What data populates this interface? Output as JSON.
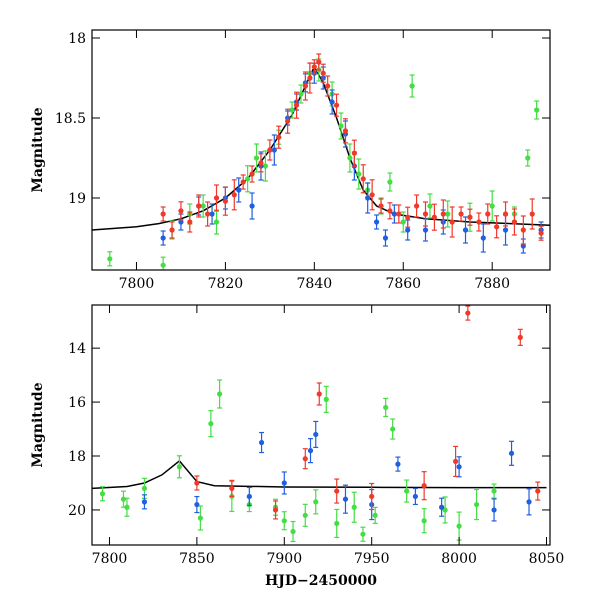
{
  "chart_data": [
    {
      "type": "scatter",
      "panel": "top",
      "xlabel": "",
      "ylabel": "Magnitude",
      "xlim": [
        7790,
        7893
      ],
      "ylim": [
        19.45,
        17.95
      ],
      "y_inverted": true,
      "x_ticks": [
        7800,
        7820,
        7840,
        7860,
        7880
      ],
      "x_tick_labels": [
        "7800",
        "7820",
        "7840",
        "7860",
        "7880"
      ],
      "y_ticks": [
        18,
        18.5,
        19
      ],
      "y_tick_labels": [
        "18",
        "18.5",
        "19"
      ],
      "colors": {
        "green": "#44dd44",
        "blue": "#1f5fe0",
        "red": "#f0392b",
        "model": "#000000"
      },
      "model_curve": [
        [
          7790,
          19.2
        ],
        [
          7800,
          19.18
        ],
        [
          7805,
          19.16
        ],
        [
          7810,
          19.13
        ],
        [
          7815,
          19.08
        ],
        [
          7820,
          19.0
        ],
        [
          7825,
          18.88
        ],
        [
          7830,
          18.7
        ],
        [
          7835,
          18.48
        ],
        [
          7838,
          18.3
        ],
        [
          7840,
          18.18
        ],
        [
          7842,
          18.28
        ],
        [
          7845,
          18.5
        ],
        [
          7848,
          18.75
        ],
        [
          7851,
          18.95
        ],
        [
          7854,
          19.05
        ],
        [
          7858,
          19.1
        ],
        [
          7865,
          19.13
        ],
        [
          7875,
          19.15
        ],
        [
          7893,
          19.17
        ]
      ],
      "series": [
        {
          "color": "green",
          "points": [
            [
              7794,
              19.38
            ],
            [
              7806,
              19.42
            ],
            [
              7808,
              19.2
            ],
            [
              7812,
              19.1
            ],
            [
              7815,
              19.05
            ],
            [
              7818,
              19.15
            ],
            [
              7825,
              18.88
            ],
            [
              7827,
              18.75
            ],
            [
              7829,
              18.8
            ],
            [
              7832,
              18.62
            ],
            [
              7835,
              18.45
            ],
            [
              7837,
              18.35
            ],
            [
              7839,
              18.22
            ],
            [
              7841,
              18.2
            ],
            [
              7844,
              18.35
            ],
            [
              7846,
              18.55
            ],
            [
              7848,
              18.75
            ],
            [
              7850,
              18.85
            ],
            [
              7852,
              18.95
            ],
            [
              7855,
              19.05
            ],
            [
              7857,
              18.9
            ],
            [
              7860,
              19.15
            ],
            [
              7862,
              18.3
            ],
            [
              7866,
              19.05
            ],
            [
              7870,
              19.1
            ],
            [
              7875,
              19.12
            ],
            [
              7880,
              19.05
            ],
            [
              7885,
              19.1
            ],
            [
              7888,
              18.75
            ],
            [
              7890,
              18.45
            ]
          ]
        },
        {
          "color": "blue",
          "points": [
            [
              7806,
              19.25
            ],
            [
              7810,
              19.15
            ],
            [
              7814,
              19.05
            ],
            [
              7817,
              19.1
            ],
            [
              7820,
              19.0
            ],
            [
              7823,
              18.95
            ],
            [
              7826,
              19.05
            ],
            [
              7828,
              18.8
            ],
            [
              7831,
              18.7
            ],
            [
              7834,
              18.5
            ],
            [
              7836,
              18.4
            ],
            [
              7838,
              18.28
            ],
            [
              7840,
              18.22
            ],
            [
              7842,
              18.25
            ],
            [
              7844,
              18.4
            ],
            [
              7847,
              18.6
            ],
            [
              7849,
              18.8
            ],
            [
              7852,
              19.0
            ],
            [
              7854,
              19.15
            ],
            [
              7856,
              19.25
            ],
            [
              7858,
              19.1
            ],
            [
              7861,
              19.2
            ],
            [
              7865,
              19.2
            ],
            [
              7869,
              19.15
            ],
            [
              7874,
              19.2
            ],
            [
              7878,
              19.25
            ],
            [
              7883,
              19.2
            ],
            [
              7887,
              19.3
            ],
            [
              7891,
              19.2
            ]
          ]
        },
        {
          "color": "red",
          "points": [
            [
              7806,
              19.1
            ],
            [
              7808,
              19.2
            ],
            [
              7810,
              19.08
            ],
            [
              7812,
              19.15
            ],
            [
              7814,
              19.05
            ],
            [
              7816,
              19.1
            ],
            [
              7818,
              19.0
            ],
            [
              7820,
              19.02
            ],
            [
              7822,
              18.98
            ],
            [
              7824,
              18.9
            ],
            [
              7826,
              18.85
            ],
            [
              7828,
              18.78
            ],
            [
              7830,
              18.7
            ],
            [
              7832,
              18.62
            ],
            [
              7834,
              18.52
            ],
            [
              7836,
              18.42
            ],
            [
              7838,
              18.3
            ],
            [
              7839,
              18.25
            ],
            [
              7840,
              18.18
            ],
            [
              7841,
              18.15
            ],
            [
              7842,
              18.22
            ],
            [
              7843,
              18.3
            ],
            [
              7845,
              18.42
            ],
            [
              7847,
              18.58
            ],
            [
              7849,
              18.72
            ],
            [
              7851,
              18.88
            ],
            [
              7853,
              18.98
            ],
            [
              7855,
              19.05
            ],
            [
              7857,
              19.08
            ],
            [
              7859,
              19.1
            ],
            [
              7861,
              19.12
            ],
            [
              7863,
              19.05
            ],
            [
              7865,
              19.1
            ],
            [
              7867,
              19.12
            ],
            [
              7869,
              19.1
            ],
            [
              7871,
              19.15
            ],
            [
              7873,
              19.1
            ],
            [
              7875,
              19.12
            ],
            [
              7877,
              19.15
            ],
            [
              7879,
              19.1
            ],
            [
              7881,
              19.18
            ],
            [
              7883,
              19.1
            ],
            [
              7885,
              19.15
            ],
            [
              7887,
              19.2
            ],
            [
              7889,
              19.1
            ],
            [
              7891,
              19.22
            ]
          ]
        }
      ]
    },
    {
      "type": "scatter",
      "panel": "bottom",
      "xlabel": "HJD−2450000",
      "ylabel": "Magnitude",
      "xlim": [
        7790,
        8052
      ],
      "ylim": [
        21.3,
        12.4
      ],
      "y_inverted": true,
      "x_ticks": [
        7800,
        7850,
        7900,
        7950,
        8000,
        8050
      ],
      "x_tick_labels": [
        "7800",
        "7850",
        "7900",
        "7950",
        "8000",
        "8050"
      ],
      "y_ticks": [
        14,
        16,
        18,
        20
      ],
      "y_tick_labels": [
        "14",
        "16",
        "18",
        "20"
      ],
      "colors": {
        "green": "#44dd44",
        "blue": "#1f5fe0",
        "red": "#f0392b",
        "model": "#000000"
      },
      "model_curve": [
        [
          7790,
          19.2
        ],
        [
          7810,
          19.13
        ],
        [
          7820,
          19.0
        ],
        [
          7830,
          18.7
        ],
        [
          7840,
          18.18
        ],
        [
          7850,
          18.95
        ],
        [
          7860,
          19.1
        ],
        [
          7900,
          19.15
        ],
        [
          7950,
          19.16
        ],
        [
          8000,
          19.17
        ],
        [
          8050,
          19.17
        ]
      ],
      "series": [
        {
          "color": "green",
          "points": [
            [
              7796,
              19.4
            ],
            [
              7808,
              19.6
            ],
            [
              7810,
              19.9
            ],
            [
              7820,
              19.2
            ],
            [
              7840,
              18.4
            ],
            [
              7852,
              20.3
            ],
            [
              7858,
              16.8
            ],
            [
              7863,
              15.7
            ],
            [
              7870,
              19.5
            ],
            [
              7880,
              19.8
            ],
            [
              7895,
              19.9
            ],
            [
              7900,
              20.4
            ],
            [
              7905,
              20.8
            ],
            [
              7912,
              20.2
            ],
            [
              7918,
              19.7
            ],
            [
              7924,
              15.9
            ],
            [
              7930,
              20.5
            ],
            [
              7940,
              19.9
            ],
            [
              7945,
              20.9
            ],
            [
              7952,
              20.2
            ],
            [
              7958,
              16.2
            ],
            [
              7962,
              17.0
            ],
            [
              7970,
              19.3
            ],
            [
              7980,
              20.4
            ],
            [
              7992,
              20.0
            ],
            [
              8000,
              20.6
            ],
            [
              8010,
              19.8
            ],
            [
              8020,
              19.3
            ]
          ]
        },
        {
          "color": "blue",
          "points": [
            [
              7820,
              19.7
            ],
            [
              7850,
              19.8
            ],
            [
              7880,
              19.5
            ],
            [
              7887,
              17.5
            ],
            [
              7900,
              19.0
            ],
            [
              7915,
              17.8
            ],
            [
              7918,
              17.2
            ],
            [
              7935,
              19.6
            ],
            [
              7950,
              19.8
            ],
            [
              7965,
              18.3
            ],
            [
              7975,
              19.5
            ],
            [
              7990,
              19.9
            ],
            [
              8000,
              18.4
            ],
            [
              8020,
              20.0
            ],
            [
              8030,
              17.9
            ],
            [
              8040,
              19.7
            ]
          ]
        },
        {
          "color": "red",
          "points": [
            [
              7850,
              19.0
            ],
            [
              7870,
              19.2
            ],
            [
              7895,
              20.0
            ],
            [
              7912,
              18.1
            ],
            [
              7920,
              15.7
            ],
            [
              7930,
              19.3
            ],
            [
              7950,
              19.5
            ],
            [
              7980,
              19.1
            ],
            [
              7998,
              18.2
            ],
            [
              8005,
              12.7
            ],
            [
              8035,
              13.6
            ],
            [
              8045,
              19.3
            ]
          ]
        }
      ]
    }
  ]
}
